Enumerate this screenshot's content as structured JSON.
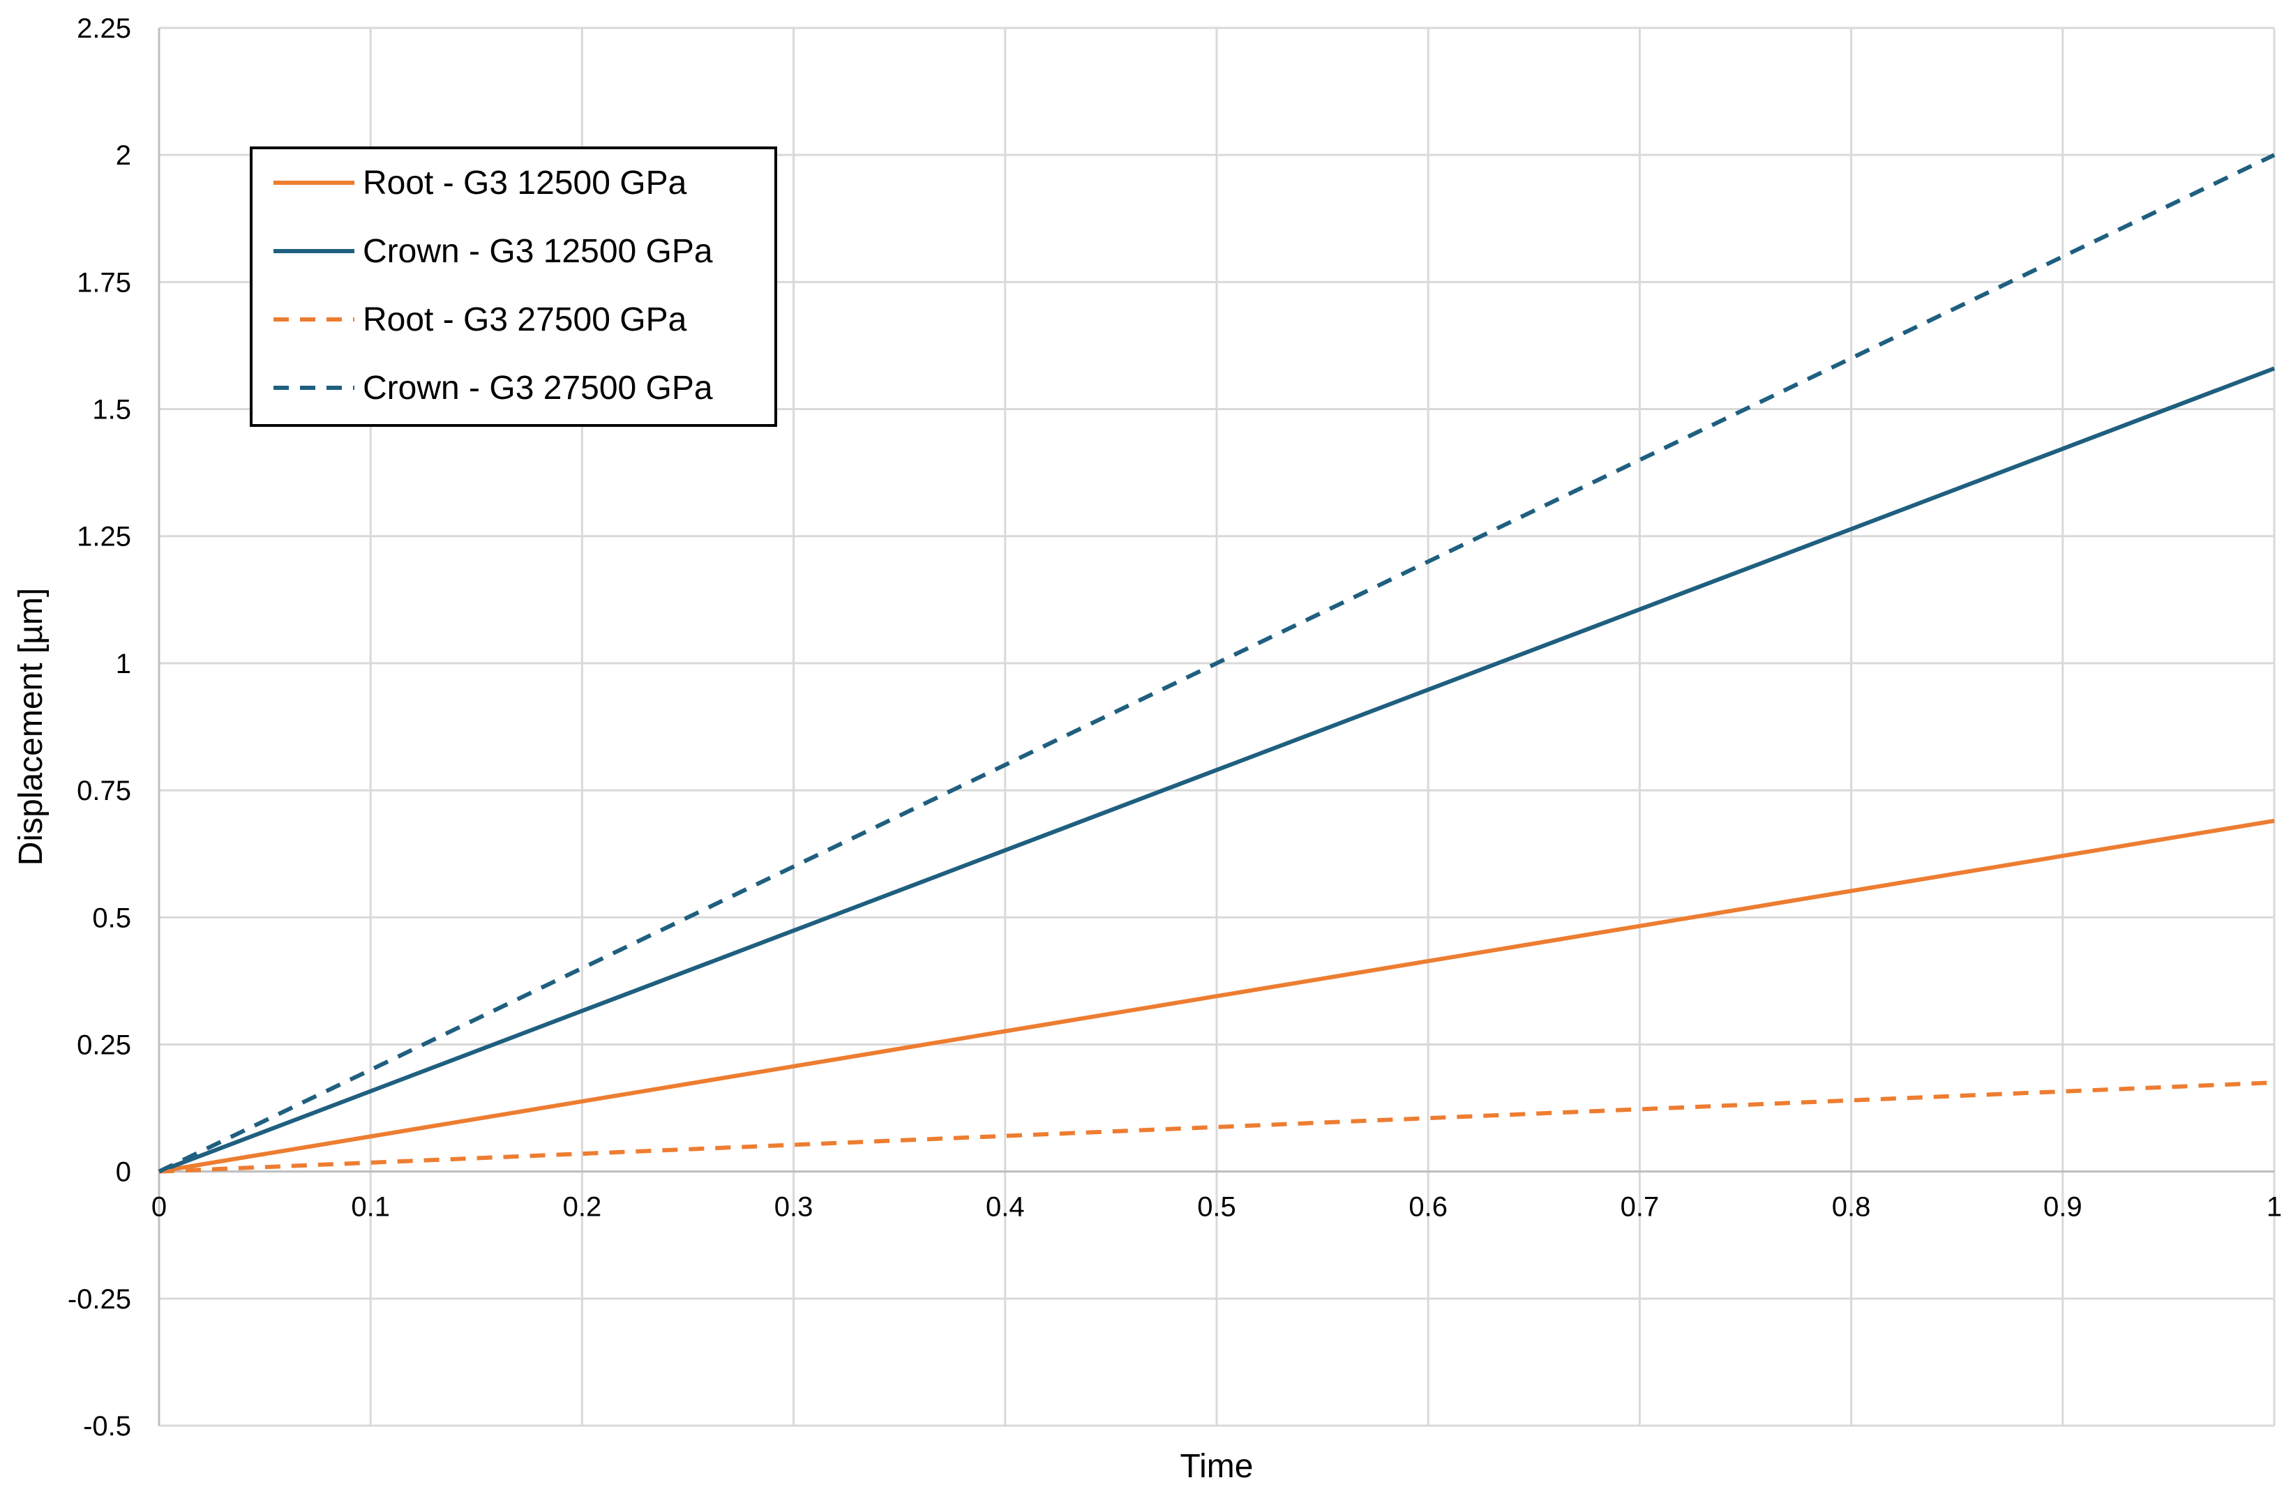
{
  "chart_data": {
    "type": "line",
    "title": "",
    "xlabel": "Time",
    "ylabel": "Displacement [µm]",
    "xlim": [
      0,
      1
    ],
    "ylim": [
      -0.5,
      2.25
    ],
    "x_ticks": [
      0,
      0.1,
      0.2,
      0.3,
      0.4,
      0.5,
      0.6,
      0.7,
      0.8,
      0.9,
      1
    ],
    "x_tick_labels": [
      "0",
      "0.1",
      "0.2",
      "0.3",
      "0.4",
      "0.5",
      "0.6",
      "0.7",
      "0.8",
      "0.9",
      "1"
    ],
    "y_ticks": [
      -0.5,
      -0.25,
      0,
      0.25,
      0.5,
      0.75,
      1,
      1.25,
      1.5,
      1.75,
      2,
      2.25
    ],
    "y_tick_labels": [
      "-0.5",
      "-0.25",
      "0",
      "0.25",
      "0.5",
      "0.75",
      "1",
      "1.25",
      "1.5",
      "1.75",
      "2",
      "2.25"
    ],
    "grid": true,
    "legend_position": "top-left",
    "series": [
      {
        "name": "Root - G3 12500 GPa",
        "color": "#ed7d31",
        "dash": "solid",
        "x": [
          0,
          0.1,
          0.2,
          0.3,
          0.4,
          0.5,
          0.6,
          0.7,
          0.8,
          0.9,
          1
        ],
        "y": [
          0,
          0.069,
          0.138,
          0.207,
          0.276,
          0.345,
          0.414,
          0.483,
          0.552,
          0.621,
          0.69
        ]
      },
      {
        "name": "Crown - G3 12500 GPa",
        "color": "#1f5f7f",
        "dash": "solid",
        "x": [
          0,
          0.1,
          0.2,
          0.3,
          0.4,
          0.5,
          0.6,
          0.7,
          0.8,
          0.9,
          1
        ],
        "y": [
          0,
          0.158,
          0.316,
          0.474,
          0.632,
          0.79,
          0.948,
          1.106,
          1.264,
          1.422,
          1.58
        ]
      },
      {
        "name": "Root - G3 27500 GPa",
        "color": "#ed7d31",
        "dash": "dashed",
        "x": [
          0,
          0.1,
          0.2,
          0.3,
          0.4,
          0.5,
          0.6,
          0.7,
          0.8,
          0.9,
          1
        ],
        "y": [
          0,
          0.0175,
          0.035,
          0.0525,
          0.07,
          0.0875,
          0.105,
          0.1225,
          0.14,
          0.1575,
          0.175
        ]
      },
      {
        "name": "Crown - G3 27500 GPa",
        "color": "#1f5f7f",
        "dash": "dashed",
        "x": [
          0,
          0.1,
          0.2,
          0.3,
          0.4,
          0.5,
          0.6,
          0.7,
          0.8,
          0.9,
          1
        ],
        "y": [
          0,
          0.2,
          0.4,
          0.6,
          0.8,
          1.0,
          1.2,
          1.4,
          1.6,
          1.8,
          2.0
        ]
      }
    ]
  }
}
